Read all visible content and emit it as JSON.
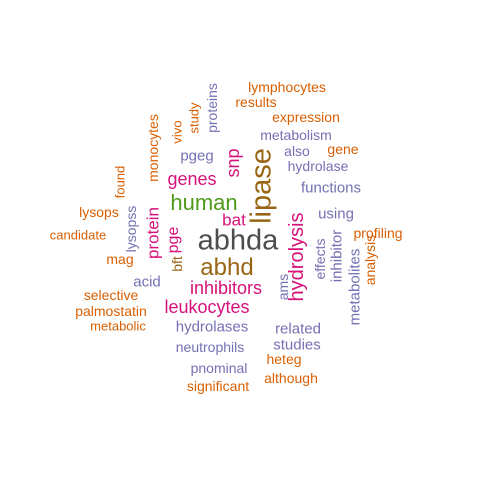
{
  "palette": {
    "gray": "#4d4d4d",
    "olive": "#996515",
    "purple": "#7570b3",
    "orange": "#d95f02",
    "magenta": "#d6117a",
    "green": "#4d9a1a"
  },
  "words": [
    {
      "text": "abhda",
      "color": "gray"
    },
    {
      "text": "abhd",
      "color": "olive"
    },
    {
      "text": "lipase",
      "color": "olive"
    },
    {
      "text": "human",
      "color": "green"
    },
    {
      "text": "hydrolysis",
      "color": "magenta"
    },
    {
      "text": "inhibitors",
      "color": "magenta"
    },
    {
      "text": "leukocytes",
      "color": "magenta"
    },
    {
      "text": "genes",
      "color": "magenta"
    },
    {
      "text": "snp",
      "color": "magenta"
    },
    {
      "text": "bat",
      "color": "magenta"
    },
    {
      "text": "pge",
      "color": "magenta"
    },
    {
      "text": "protein",
      "color": "magenta"
    },
    {
      "text": "lymphocytes",
      "color": "orange"
    },
    {
      "text": "results",
      "color": "orange"
    },
    {
      "text": "expression",
      "color": "orange"
    },
    {
      "text": "metabolism",
      "color": "purple"
    },
    {
      "text": "also",
      "color": "purple"
    },
    {
      "text": "gene",
      "color": "orange"
    },
    {
      "text": "hydrolase",
      "color": "purple"
    },
    {
      "text": "functions",
      "color": "purple"
    },
    {
      "text": "using",
      "color": "purple"
    },
    {
      "text": "profiling",
      "color": "orange"
    },
    {
      "text": "inhibitor",
      "color": "purple"
    },
    {
      "text": "effects",
      "color": "purple"
    },
    {
      "text": "ams",
      "color": "purple"
    },
    {
      "text": "metabolites",
      "color": "purple"
    },
    {
      "text": "analysis",
      "color": "orange"
    },
    {
      "text": "related",
      "color": "purple"
    },
    {
      "text": "studies",
      "color": "purple"
    },
    {
      "text": "hydrolases",
      "color": "purple"
    },
    {
      "text": "neutrophils",
      "color": "purple"
    },
    {
      "text": "heteg",
      "color": "orange"
    },
    {
      "text": "pnominal",
      "color": "purple"
    },
    {
      "text": "although",
      "color": "orange"
    },
    {
      "text": "significant",
      "color": "orange"
    },
    {
      "text": "pgeg",
      "color": "purple"
    },
    {
      "text": "proteins",
      "color": "purple"
    },
    {
      "text": "study",
      "color": "orange"
    },
    {
      "text": "vivo",
      "color": "orange"
    },
    {
      "text": "monocytes",
      "color": "orange"
    },
    {
      "text": "found",
      "color": "orange"
    },
    {
      "text": "lysops",
      "color": "orange"
    },
    {
      "text": "candidate",
      "color": "orange"
    },
    {
      "text": "lysopss",
      "color": "purple"
    },
    {
      "text": "mag",
      "color": "orange"
    },
    {
      "text": "bft",
      "color": "olive"
    },
    {
      "text": "acid",
      "color": "purple"
    },
    {
      "text": "selective",
      "color": "orange"
    },
    {
      "text": "palmostatin",
      "color": "orange"
    },
    {
      "text": "metabolic",
      "color": "orange"
    }
  ]
}
